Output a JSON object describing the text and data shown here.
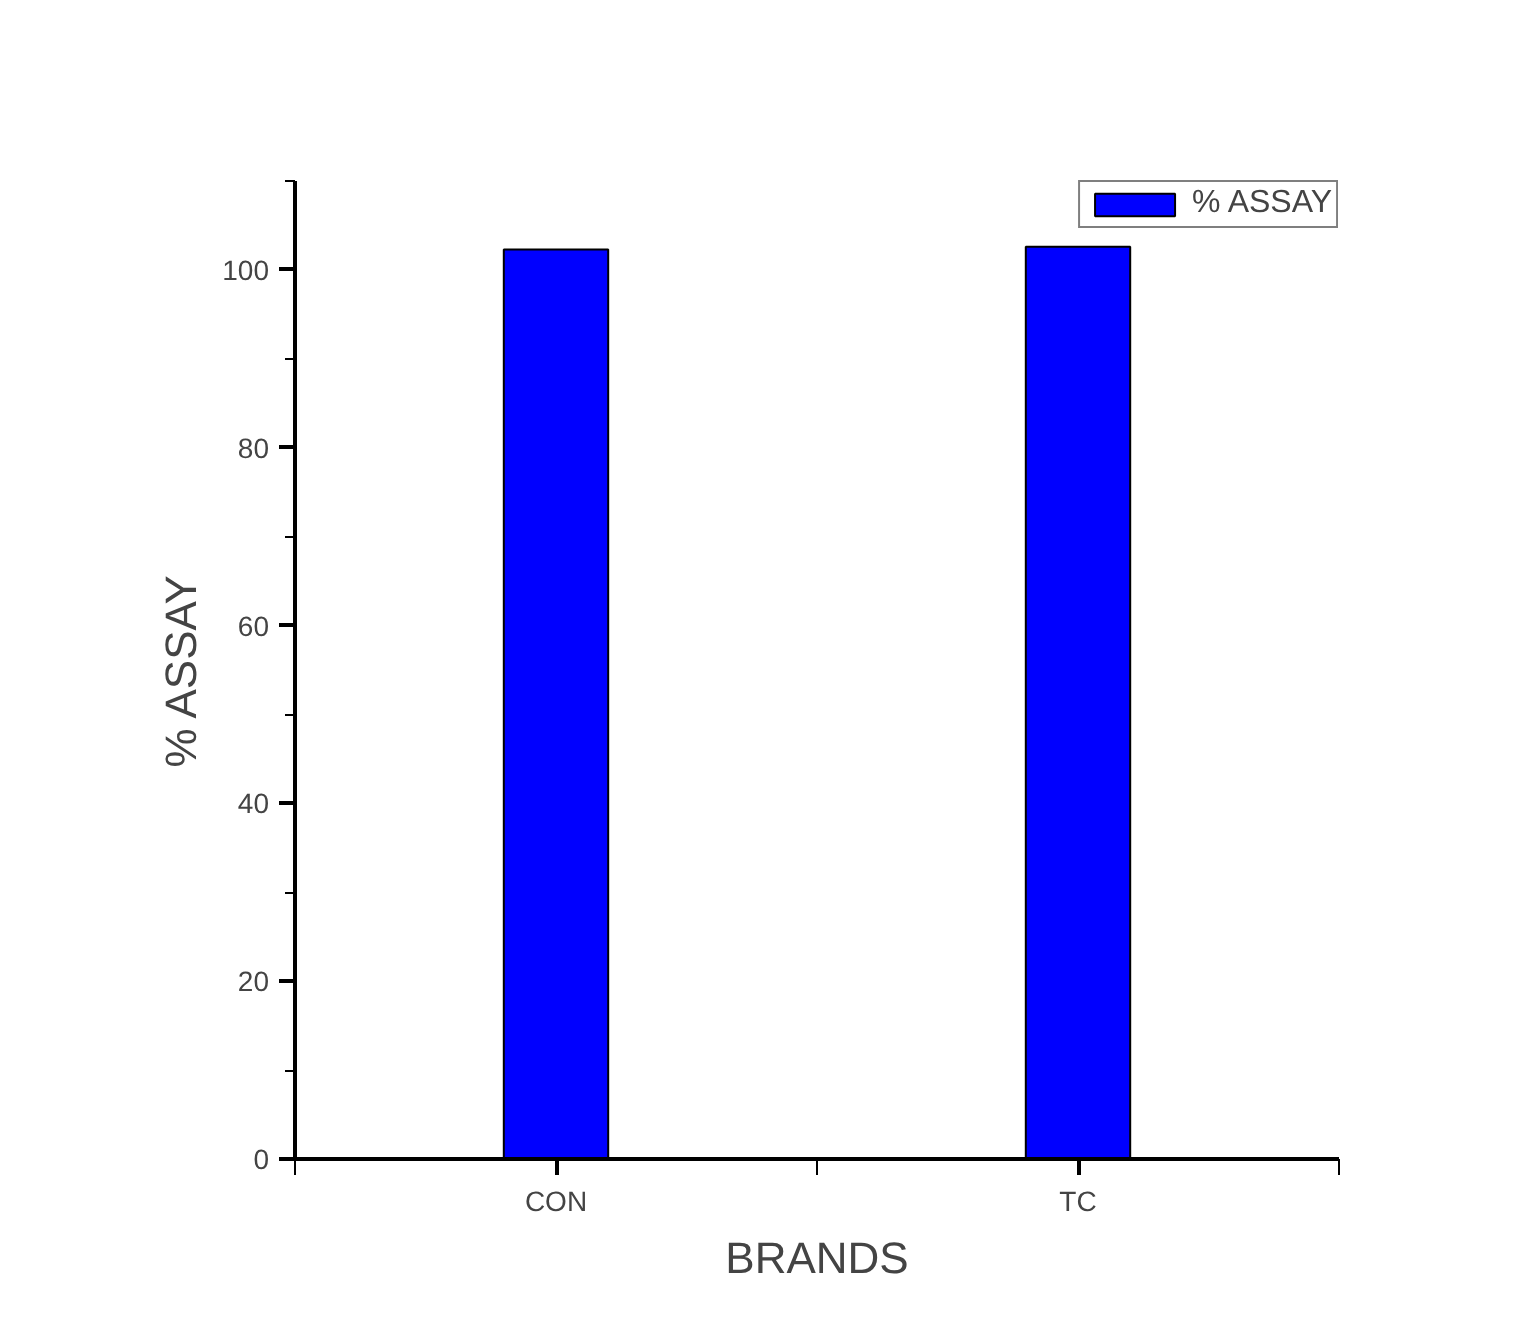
{
  "chart_data": {
    "type": "bar",
    "xlabel": "BRANDS",
    "ylabel": "% ASSAY",
    "categories": [
      "CON",
      "TC"
    ],
    "series": [
      {
        "name": "% ASSAY",
        "color": "#0000ff",
        "values": [
          102.3,
          102.6
        ]
      }
    ],
    "ylim": [
      0,
      110
    ],
    "yticks": [
      0,
      {
        "value": 10,
        "label": null
      },
      20,
      {
        "value": 30,
        "label": null
      },
      40,
      {
        "value": 50,
        "label": null
      },
      60,
      {
        "value": 70,
        "label": null
      },
      80,
      {
        "value": 90,
        "label": null
      },
      100,
      {
        "value": 110,
        "label": null
      }
    ],
    "grid": false,
    "legend": "top right"
  }
}
